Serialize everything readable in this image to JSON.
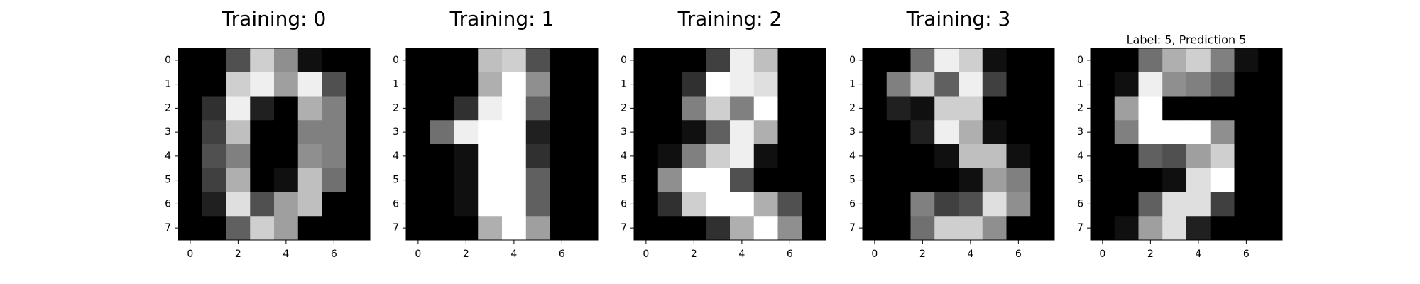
{
  "figure": {
    "background": "#ffffff"
  },
  "chart_data": [
    {
      "type": "heatmap",
      "title": "Training: 0",
      "colormap": "gray",
      "value_range": [
        0,
        16
      ],
      "x_ticks": [
        0,
        2,
        4,
        6
      ],
      "y_ticks": [
        0,
        1,
        2,
        3,
        4,
        5,
        6,
        7
      ],
      "values": [
        [
          0,
          0,
          5,
          13,
          9,
          1,
          0,
          0
        ],
        [
          0,
          0,
          13,
          15,
          10,
          15,
          5,
          0
        ],
        [
          0,
          3,
          15,
          2,
          0,
          11,
          8,
          0
        ],
        [
          0,
          4,
          12,
          0,
          0,
          8,
          8,
          0
        ],
        [
          0,
          5,
          8,
          0,
          0,
          9,
          8,
          0
        ],
        [
          0,
          4,
          11,
          0,
          1,
          12,
          7,
          0
        ],
        [
          0,
          2,
          14,
          5,
          10,
          12,
          0,
          0
        ],
        [
          0,
          0,
          6,
          13,
          10,
          0,
          0,
          0
        ]
      ]
    },
    {
      "type": "heatmap",
      "title": "Training: 1",
      "colormap": "gray",
      "value_range": [
        0,
        16
      ],
      "x_ticks": [
        0,
        2,
        4,
        6
      ],
      "y_ticks": [
        0,
        1,
        2,
        3,
        4,
        5,
        6,
        7
      ],
      "values": [
        [
          0,
          0,
          0,
          12,
          13,
          5,
          0,
          0
        ],
        [
          0,
          0,
          0,
          11,
          16,
          9,
          0,
          0
        ],
        [
          0,
          0,
          3,
          15,
          16,
          6,
          0,
          0
        ],
        [
          0,
          7,
          15,
          16,
          16,
          2,
          0,
          0
        ],
        [
          0,
          0,
          1,
          16,
          16,
          3,
          0,
          0
        ],
        [
          0,
          0,
          1,
          16,
          16,
          6,
          0,
          0
        ],
        [
          0,
          0,
          1,
          16,
          16,
          6,
          0,
          0
        ],
        [
          0,
          0,
          0,
          11,
          16,
          10,
          0,
          0
        ]
      ]
    },
    {
      "type": "heatmap",
      "title": "Training: 2",
      "colormap": "gray",
      "value_range": [
        0,
        16
      ],
      "x_ticks": [
        0,
        2,
        4,
        6
      ],
      "y_ticks": [
        0,
        1,
        2,
        3,
        4,
        5,
        6,
        7
      ],
      "values": [
        [
          0,
          0,
          0,
          4,
          15,
          12,
          0,
          0
        ],
        [
          0,
          0,
          3,
          16,
          15,
          14,
          0,
          0
        ],
        [
          0,
          0,
          8,
          13,
          8,
          16,
          0,
          0
        ],
        [
          0,
          0,
          1,
          6,
          15,
          11,
          0,
          0
        ],
        [
          0,
          1,
          8,
          13,
          15,
          1,
          0,
          0
        ],
        [
          0,
          9,
          16,
          16,
          5,
          0,
          0,
          0
        ],
        [
          0,
          3,
          13,
          16,
          16,
          11,
          5,
          0
        ],
        [
          0,
          0,
          0,
          3,
          11,
          16,
          9,
          0
        ]
      ]
    },
    {
      "type": "heatmap",
      "title": "Training: 3",
      "colormap": "gray",
      "value_range": [
        0,
        16
      ],
      "x_ticks": [
        0,
        2,
        4,
        6
      ],
      "y_ticks": [
        0,
        1,
        2,
        3,
        4,
        5,
        6,
        7
      ],
      "values": [
        [
          0,
          0,
          7,
          15,
          13,
          1,
          0,
          0
        ],
        [
          0,
          8,
          13,
          6,
          15,
          4,
          0,
          0
        ],
        [
          0,
          2,
          1,
          13,
          13,
          0,
          0,
          0
        ],
        [
          0,
          0,
          2,
          15,
          11,
          1,
          0,
          0
        ],
        [
          0,
          0,
          0,
          1,
          12,
          12,
          1,
          0
        ],
        [
          0,
          0,
          0,
          0,
          1,
          10,
          8,
          0
        ],
        [
          0,
          0,
          8,
          4,
          5,
          14,
          9,
          0
        ],
        [
          0,
          0,
          7,
          13,
          13,
          9,
          0,
          0
        ]
      ]
    },
    {
      "type": "heatmap",
      "title": "Label: 5, Prediction 5",
      "colormap": "gray",
      "value_range": [
        0,
        16
      ],
      "x_ticks": [
        0,
        2,
        4,
        6
      ],
      "y_ticks": [
        0,
        1,
        2,
        3,
        4,
        5,
        6,
        7
      ],
      "values": [
        [
          0,
          0,
          7,
          11,
          13,
          8,
          1,
          0
        ],
        [
          0,
          1,
          15,
          9,
          8,
          6,
          0,
          0
        ],
        [
          0,
          10,
          16,
          0,
          0,
          0,
          0,
          0
        ],
        [
          0,
          8,
          16,
          16,
          16,
          9,
          0,
          0
        ],
        [
          0,
          0,
          6,
          5,
          10,
          13,
          0,
          0
        ],
        [
          0,
          0,
          0,
          1,
          14,
          16,
          0,
          0
        ],
        [
          0,
          0,
          6,
          14,
          14,
          4,
          0,
          0
        ],
        [
          0,
          1,
          10,
          14,
          2,
          0,
          0,
          0
        ]
      ]
    }
  ]
}
